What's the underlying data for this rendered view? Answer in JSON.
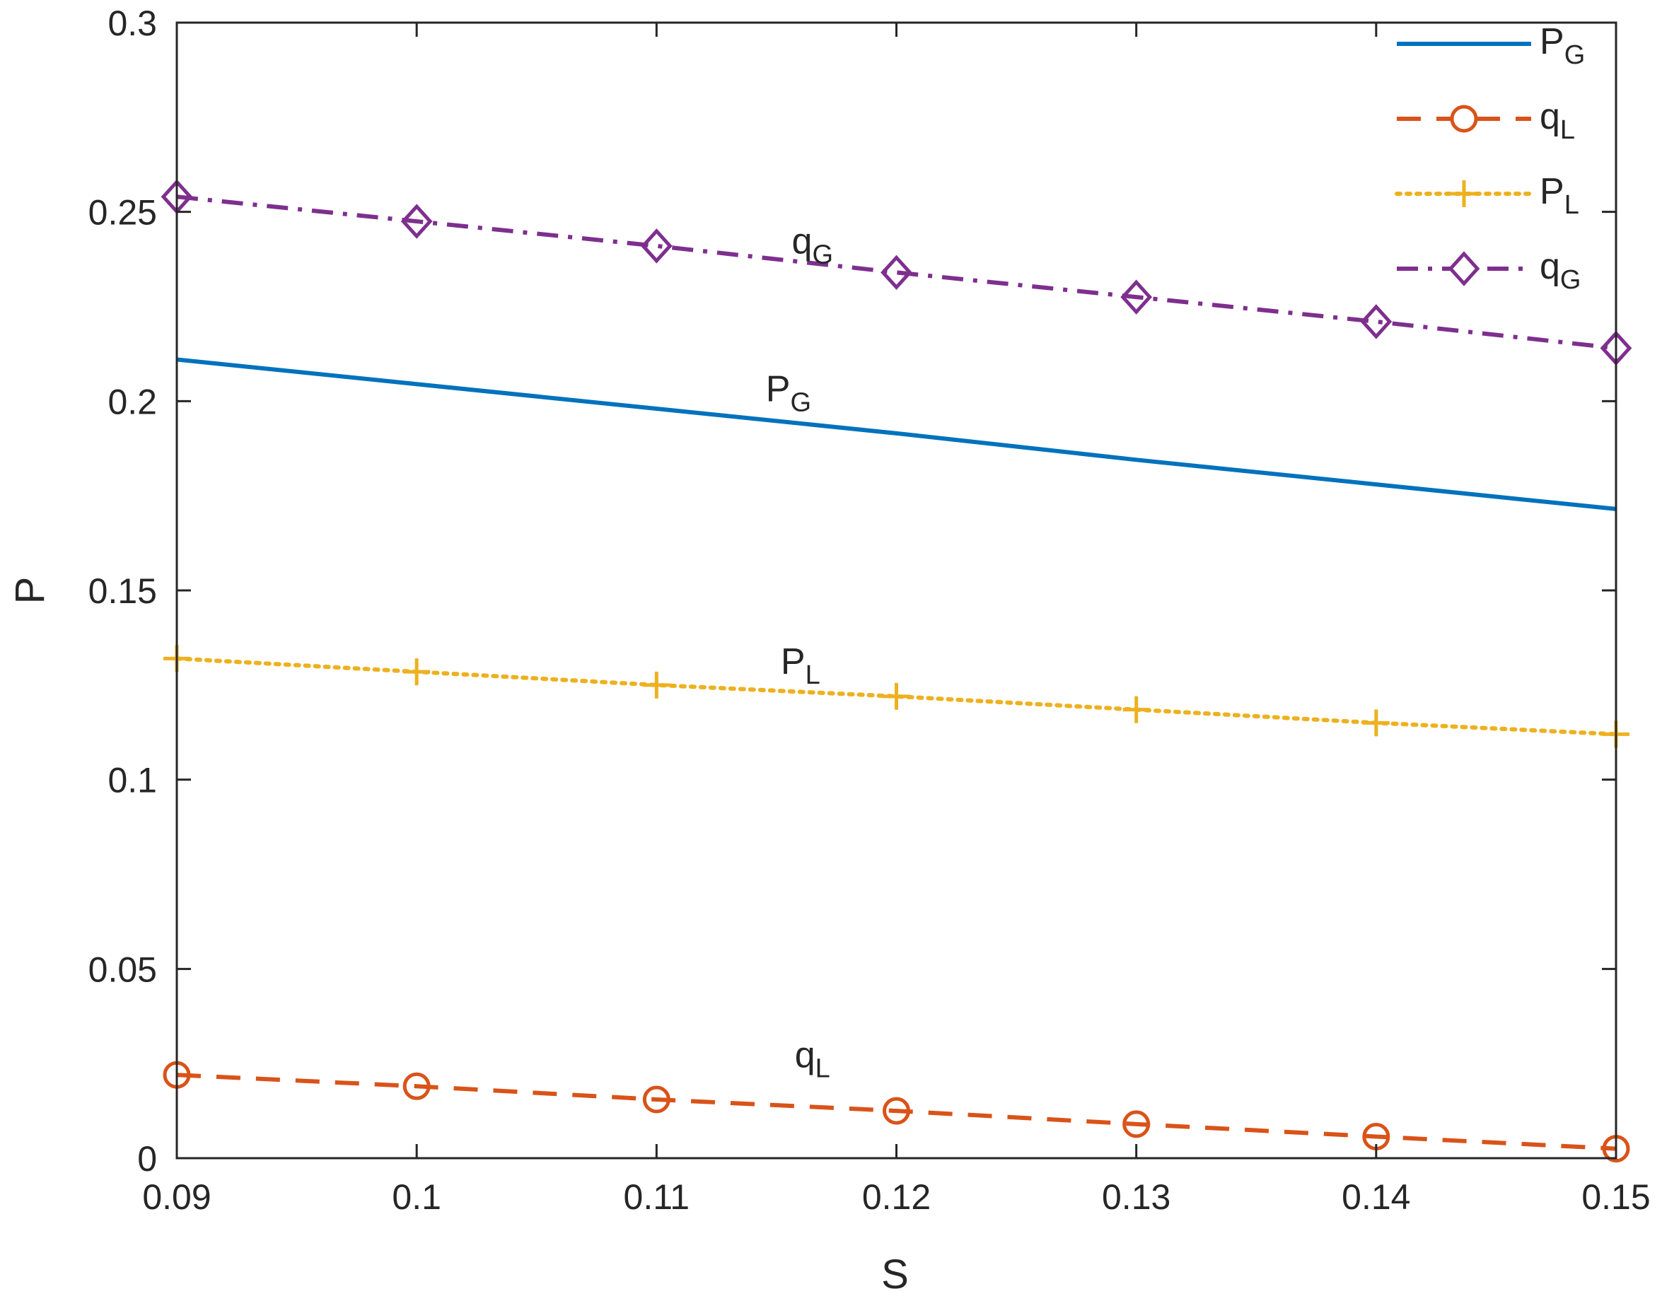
{
  "chart_data": {
    "type": "line",
    "title": "",
    "xlabel": "S",
    "ylabel": "P",
    "xlim": [
      0.09,
      0.15
    ],
    "ylim": [
      0,
      0.3
    ],
    "grid": false,
    "legend_position": "top-right",
    "x": [
      0.09,
      0.1,
      0.11,
      0.12,
      0.13,
      0.14,
      0.15
    ],
    "xticks": [
      {
        "value": 0.09,
        "label": "0.09"
      },
      {
        "value": 0.1,
        "label": "0.1"
      },
      {
        "value": 0.11,
        "label": "0.11"
      },
      {
        "value": 0.12,
        "label": "0.12"
      },
      {
        "value": 0.13,
        "label": "0.13"
      },
      {
        "value": 0.14,
        "label": "0.14"
      },
      {
        "value": 0.15,
        "label": "0.15"
      }
    ],
    "yticks": [
      {
        "value": 0,
        "label": "0"
      },
      {
        "value": 0.05,
        "label": "0.05"
      },
      {
        "value": 0.1,
        "label": "0.1"
      },
      {
        "value": 0.15,
        "label": "0.15"
      },
      {
        "value": 0.2,
        "label": "0.2"
      },
      {
        "value": 0.25,
        "label": "0.25"
      },
      {
        "value": 0.3,
        "label": "0.3"
      }
    ],
    "series": [
      {
        "id": "PG",
        "base": "P",
        "sub": "G",
        "color": "#0072BD",
        "style": "solid",
        "marker": "none",
        "values": [
          0.211,
          0.2045,
          0.198,
          0.1915,
          0.1845,
          0.178,
          0.1715
        ]
      },
      {
        "id": "qL",
        "base": "q",
        "sub": "L",
        "color": "#D95319",
        "style": "dashed",
        "marker": "circle",
        "values": [
          0.022,
          0.019,
          0.0155,
          0.0125,
          0.009,
          0.0057,
          0.0025
        ]
      },
      {
        "id": "PL",
        "base": "P",
        "sub": "L",
        "color": "#EDB120",
        "style": "dotted",
        "marker": "plus",
        "values": [
          0.132,
          0.1285,
          0.125,
          0.122,
          0.1185,
          0.115,
          0.112
        ]
      },
      {
        "id": "qG",
        "base": "q",
        "sub": "G",
        "color": "#7E2F8E",
        "style": "dashdot",
        "marker": "diamond",
        "values": [
          0.254,
          0.2475,
          0.241,
          0.234,
          0.2275,
          0.221,
          0.214
        ]
      }
    ],
    "annotations": [
      {
        "series": "qG",
        "base": "q",
        "sub": "G",
        "x": 0.1165,
        "y": 0.239
      },
      {
        "series": "PG",
        "base": "P",
        "sub": "G",
        "x": 0.1155,
        "y": 0.2
      },
      {
        "series": "PL",
        "base": "P",
        "sub": "L",
        "x": 0.116,
        "y": 0.128
      },
      {
        "series": "qL",
        "base": "q",
        "sub": "L",
        "x": 0.1165,
        "y": 0.024
      }
    ]
  }
}
